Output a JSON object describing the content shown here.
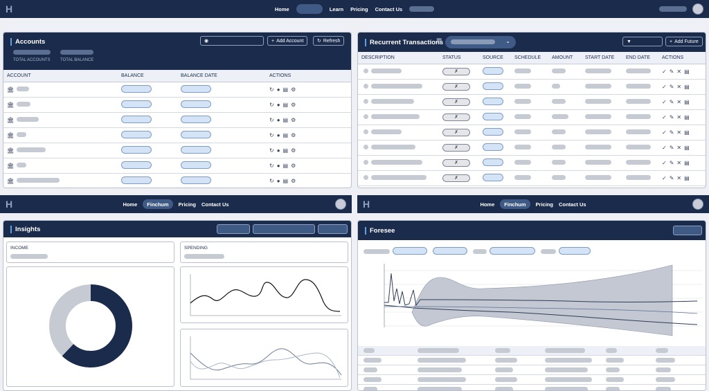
{
  "nav_top": {
    "logo": "H",
    "links": [
      "Home",
      "Learn",
      "Pricing",
      "Contact Us"
    ]
  },
  "nav_bottom": {
    "logo": "H",
    "links": [
      "Home",
      "Finchum",
      "Pricing",
      "Contact Us"
    ]
  },
  "accounts": {
    "title": "Accounts",
    "add_button": "Add Account",
    "refresh_button": "Refresh",
    "total_accounts_label": "TOTAL ACCOUNTS",
    "total_balance_label": "TOTAL BALANCE",
    "columns": [
      "ACCOUNT",
      "BALANCE",
      "BALANCE DATE",
      "ACTIONS"
    ],
    "row_count": 7
  },
  "recurrent": {
    "title": "Recurrent Transactions",
    "add_button": "Add Future",
    "columns": [
      "DESCRIPTION",
      "STATUS",
      "SOURCE",
      "SCHEDULE",
      "AMOUNT",
      "START DATE",
      "END DATE",
      "ACTIONS"
    ],
    "row_count": 8
  },
  "insights": {
    "title": "Insights",
    "income_label": "INCOME",
    "spending_label": "SPENDING",
    "donut": {
      "dark_fraction": 0.62,
      "colors": {
        "dark": "#1a2b4c",
        "light": "#c6cad3"
      }
    }
  },
  "foresee": {
    "title": "Foresee"
  },
  "icons": {
    "bank": "bank-icon",
    "refresh": "refresh-icon",
    "clock": "clock-icon",
    "chart": "chart-icon",
    "gear": "gear-icon",
    "check": "check-icon",
    "edit": "edit-icon",
    "close": "close-icon",
    "trash": "trash-icon",
    "filter": "filter-icon",
    "tag": "tag-icon"
  },
  "colors": {
    "navy": "#1a2b4c",
    "accent": "#5ea0e6"
  }
}
